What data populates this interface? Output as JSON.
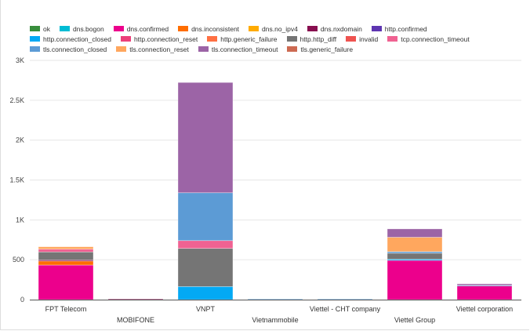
{
  "chart_data": {
    "type": "bar",
    "stacked": true,
    "title": "",
    "xlabel": "",
    "ylabel": "",
    "ylim": [
      0,
      3000
    ],
    "yticks": [
      {
        "v": 0,
        "label": "0"
      },
      {
        "v": 500,
        "label": "500"
      },
      {
        "v": 1000,
        "label": "1K"
      },
      {
        "v": 1500,
        "label": "1.5K"
      },
      {
        "v": 2000,
        "label": "2K"
      },
      {
        "v": 2500,
        "label": "2.5K"
      },
      {
        "v": 3000,
        "label": "3K"
      }
    ],
    "grid": true,
    "legend_position": "top",
    "categories": [
      "FPT Telecom",
      "MOBIFONE",
      "VNPT",
      "Vietnammobile",
      "Viettel - CHT company",
      "Viettel Group",
      "Viettel corporation"
    ],
    "series": [
      {
        "name": "ok",
        "color": "#388e3c",
        "values": [
          0,
          0,
          0,
          0,
          0,
          0,
          0
        ]
      },
      {
        "name": "dns.bogon",
        "color": "#00bcd4",
        "values": [
          0,
          0,
          0,
          0,
          0,
          0,
          0
        ]
      },
      {
        "name": "dns.confirmed",
        "color": "#ec008c",
        "values": [
          433,
          0,
          0,
          0,
          0,
          492,
          172
        ]
      },
      {
        "name": "dns.inconsistent",
        "color": "#ff6d00",
        "values": [
          50,
          0,
          0,
          0,
          0,
          0,
          0
        ]
      },
      {
        "name": "dns.no_ipv4",
        "color": "#ffab00",
        "values": [
          0,
          0,
          0,
          0,
          0,
          0,
          0
        ]
      },
      {
        "name": "dns.nxdomain",
        "color": "#880e4f",
        "values": [
          15,
          8,
          0,
          0,
          0,
          0,
          0
        ]
      },
      {
        "name": "http.confirmed",
        "color": "#5e35b1",
        "values": [
          0,
          0,
          0,
          0,
          0,
          0,
          0
        ]
      },
      {
        "name": "http.connection_closed",
        "color": "#03a9f4",
        "values": [
          0,
          0,
          164,
          0,
          0,
          15,
          0
        ]
      },
      {
        "name": "http.connection_reset",
        "color": "#ec407a",
        "values": [
          0,
          0,
          0,
          0,
          0,
          0,
          0
        ]
      },
      {
        "name": "http.generic_failure",
        "color": "#ff7043",
        "values": [
          0,
          0,
          0,
          0,
          0,
          0,
          0
        ]
      },
      {
        "name": "http.http_diff",
        "color": "#757575",
        "values": [
          100,
          0,
          478,
          0,
          0,
          75,
          0
        ]
      },
      {
        "name": "invalid",
        "color": "#ef5350",
        "values": [
          0,
          0,
          0,
          0,
          0,
          0,
          0
        ]
      },
      {
        "name": "tcp.connection_timeout",
        "color": "#f06292",
        "values": [
          35,
          0,
          98,
          0,
          0,
          0,
          0
        ]
      },
      {
        "name": "tls.connection_closed",
        "color": "#5c9bd5",
        "values": [
          0,
          0,
          600,
          8,
          8,
          20,
          8
        ]
      },
      {
        "name": "tls.connection_reset",
        "color": "#ffa75e",
        "values": [
          30,
          0,
          0,
          0,
          0,
          180,
          0
        ]
      },
      {
        "name": "tls.connection_timeout",
        "color": "#9c64a6",
        "values": [
          0,
          0,
          1383,
          0,
          0,
          105,
          18
        ]
      },
      {
        "name": "tls.generic_failure",
        "color": "#cd6a52",
        "values": [
          0,
          0,
          0,
          0,
          0,
          0,
          0
        ]
      }
    ]
  }
}
